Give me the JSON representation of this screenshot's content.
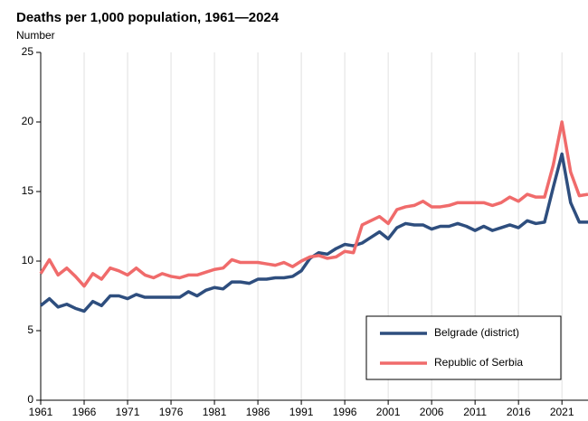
{
  "chart_data": {
    "type": "line",
    "title": "Deaths per 1,000 population, 1961—2024",
    "subtitle": "Number",
    "x": [
      1961,
      1962,
      1963,
      1964,
      1965,
      1966,
      1967,
      1968,
      1969,
      1970,
      1971,
      1972,
      1973,
      1974,
      1975,
      1976,
      1977,
      1978,
      1979,
      1980,
      1981,
      1982,
      1983,
      1984,
      1985,
      1986,
      1987,
      1988,
      1989,
      1990,
      1991,
      1992,
      1993,
      1994,
      1995,
      1996,
      1997,
      1998,
      1999,
      2000,
      2001,
      2002,
      2003,
      2004,
      2005,
      2006,
      2007,
      2008,
      2009,
      2010,
      2011,
      2012,
      2013,
      2014,
      2015,
      2016,
      2017,
      2018,
      2019,
      2020,
      2021,
      2022,
      2023,
      2024
    ],
    "series": [
      {
        "name": "Belgrade (district)",
        "color": "#2e4e7e",
        "values": [
          6.8,
          7.3,
          6.7,
          6.9,
          6.6,
          6.4,
          7.1,
          6.8,
          7.5,
          7.5,
          7.3,
          7.6,
          7.4,
          7.4,
          7.4,
          7.4,
          7.4,
          7.8,
          7.5,
          7.9,
          8.1,
          8.0,
          8.5,
          8.5,
          8.4,
          8.7,
          8.7,
          8.8,
          8.8,
          8.9,
          9.3,
          10.2,
          10.6,
          10.5,
          10.9,
          11.2,
          11.1,
          11.3,
          11.7,
          12.1,
          11.6,
          12.4,
          12.7,
          12.6,
          12.6,
          12.3,
          12.5,
          12.5,
          12.7,
          12.5,
          12.2,
          12.5,
          12.2,
          12.4,
          12.6,
          12.4,
          12.9,
          12.7,
          12.8,
          15.3,
          17.7,
          14.2,
          12.8,
          12.8
        ]
      },
      {
        "name": "Republic of Serbia",
        "color": "#f06b6b",
        "values": [
          9.1,
          10.1,
          9.0,
          9.5,
          8.9,
          8.2,
          9.1,
          8.7,
          9.5,
          9.3,
          9.0,
          9.5,
          9.0,
          8.8,
          9.1,
          8.9,
          8.8,
          9.0,
          9.0,
          9.2,
          9.4,
          9.5,
          10.1,
          9.9,
          9.9,
          9.9,
          9.8,
          9.7,
          9.9,
          9.6,
          10.0,
          10.3,
          10.4,
          10.2,
          10.3,
          10.7,
          10.6,
          12.6,
          12.9,
          13.2,
          12.7,
          13.7,
          13.9,
          14.0,
          14.3,
          13.9,
          13.9,
          14.0,
          14.2,
          14.2,
          14.2,
          14.2,
          14.0,
          14.2,
          14.6,
          14.3,
          14.8,
          14.6,
          14.6,
          16.9,
          20.0,
          16.4,
          14.7,
          14.8
        ]
      }
    ],
    "xlim": [
      1961,
      2024
    ],
    "xticks": [
      1961,
      1966,
      1971,
      1976,
      1981,
      1986,
      1991,
      1996,
      2001,
      2006,
      2011,
      2016,
      2021
    ],
    "ylim": [
      0,
      25
    ],
    "yticks": [
      0,
      5,
      10,
      15,
      20,
      25
    ],
    "grid": "x",
    "legend": "lower right"
  }
}
